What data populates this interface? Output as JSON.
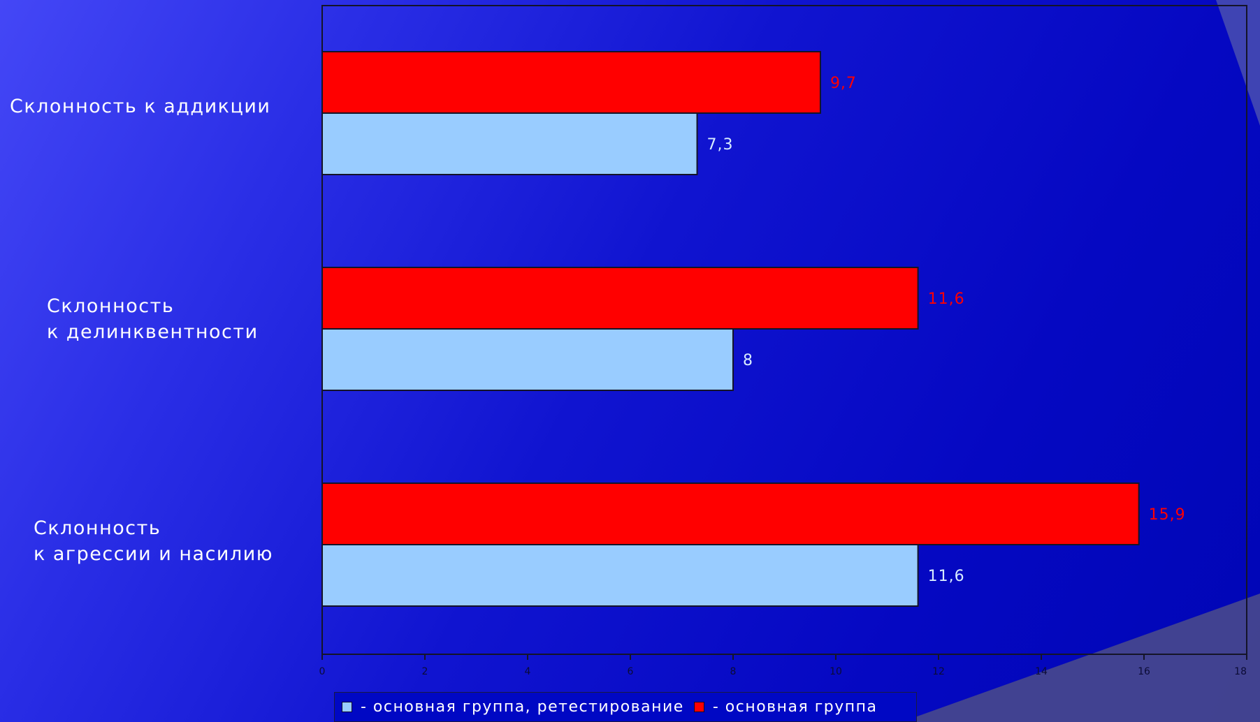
{
  "chart_data": {
    "type": "bar",
    "orientation": "horizontal",
    "categories": [
      [
        "Склонность к аддикции"
      ],
      [
        "Склонность",
        "к делинквентности"
      ],
      [
        "Склонность",
        "к агрессии и насилию"
      ]
    ],
    "series": [
      {
        "name": "- основная группа",
        "color": "#ff0000",
        "label_color": "#ff0000",
        "values": [
          9.7,
          11.6,
          15.9
        ],
        "value_labels": [
          "9,7",
          "11,6",
          "15,9"
        ]
      },
      {
        "name": "- основная группа, ретестирование",
        "color": "#99ccff",
        "label_color": "#d8ecff",
        "values": [
          7.3,
          8,
          11.6
        ],
        "value_labels": [
          "7,3",
          "8",
          "11,6"
        ]
      }
    ],
    "xlim": [
      0,
      18
    ],
    "xticks": [
      "0",
      "2",
      "4",
      "6",
      "8",
      "10",
      "12",
      "14",
      "16",
      "18"
    ],
    "legend_order": [
      1,
      0
    ],
    "legend_position": "bottom"
  }
}
